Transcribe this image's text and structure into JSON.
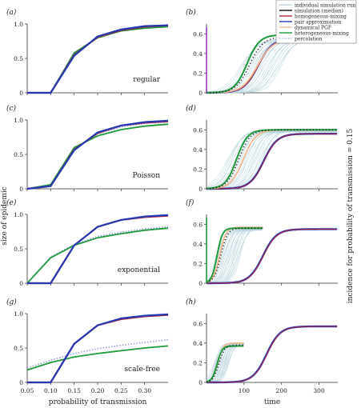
{
  "colors": {
    "individual": "#b9d4dc",
    "median": "#111111",
    "homogeneous": "#b0243a",
    "pair": "#2639b4",
    "dynamical": "#f1b890",
    "heterogeneous": "#1f9a3c",
    "percolation": "#9ea6df",
    "axis_tick": "#9a38c5"
  },
  "legend": {
    "placement": "top-right",
    "entries": [
      {
        "key": "individual",
        "label": "individual simulation run",
        "style": "line"
      },
      {
        "key": "median",
        "label": "simulation (median)",
        "style": "line"
      },
      {
        "key": "homogeneous",
        "label": "homogeneous-mixing",
        "style": "line"
      },
      {
        "key": "pair",
        "label": "pair approximation",
        "style": "line"
      },
      {
        "key": "dynamical",
        "label": "dynamical PGF",
        "style": "line"
      },
      {
        "key": "heterogeneous",
        "label": "heterogeneous-mixing",
        "style": "line"
      },
      {
        "key": "percolation",
        "label": "percolation",
        "style": "dotted"
      }
    ]
  },
  "labels": {
    "left_ylabel": "size of epidemic",
    "right_ylabel": "incidence for probability of transmission = 0.15",
    "left_xlabel": "probability of transmission",
    "right_xlabel": "time"
  },
  "chart_data": [
    {
      "panel": "(a)",
      "type": "line",
      "annotation": "regular",
      "x": [
        0.05,
        0.1,
        0.15,
        0.2,
        0.25,
        0.3,
        0.35
      ],
      "xticks": [
        "0.05",
        "0.10",
        "0.15",
        "0.20",
        "0.25",
        "0.30"
      ],
      "xlim": [
        0.05,
        0.35
      ],
      "ylim": [
        0,
        1
      ],
      "yticks": [
        "0",
        "0.5",
        "1.0"
      ],
      "show_xticklabels": false,
      "series": [
        {
          "key": "heterogeneous",
          "values": [
            0,
            0,
            0.58,
            0.8,
            0.9,
            0.94,
            0.96
          ]
        },
        {
          "key": "homogeneous",
          "values": [
            0,
            0,
            0.55,
            0.81,
            0.91,
            0.96,
            0.98
          ]
        },
        {
          "key": "pair",
          "values": [
            0,
            0,
            0.54,
            0.82,
            0.92,
            0.97,
            0.98
          ]
        },
        {
          "key": "percolation",
          "values": [
            0,
            0,
            0.55,
            0.82,
            0.93,
            0.97,
            0.99
          ]
        }
      ]
    },
    {
      "panel": "(c)",
      "type": "line",
      "annotation": "Poisson",
      "x": [
        0.05,
        0.1,
        0.15,
        0.2,
        0.25,
        0.3,
        0.35
      ],
      "xticks": [
        "0.05",
        "0.10",
        "0.15",
        "0.20",
        "0.25",
        "0.30"
      ],
      "xlim": [
        0.05,
        0.35
      ],
      "ylim": [
        0,
        1
      ],
      "yticks": [
        "0",
        "0.5",
        "1.0"
      ],
      "show_xticklabels": false,
      "series": [
        {
          "key": "heterogeneous",
          "values": [
            0,
            0.06,
            0.6,
            0.77,
            0.86,
            0.91,
            0.94
          ]
        },
        {
          "key": "homogeneous",
          "values": [
            0,
            0.04,
            0.57,
            0.81,
            0.92,
            0.96,
            0.98
          ]
        },
        {
          "key": "pair",
          "values": [
            0,
            0.04,
            0.56,
            0.82,
            0.92,
            0.97,
            0.99
          ]
        },
        {
          "key": "percolation",
          "values": [
            0,
            0.04,
            0.58,
            0.8,
            0.9,
            0.95,
            0.97
          ]
        }
      ]
    },
    {
      "panel": "(e)",
      "type": "line",
      "annotation": "exponential",
      "x": [
        0.05,
        0.1,
        0.15,
        0.2,
        0.25,
        0.3,
        0.35
      ],
      "xticks": [
        "0.05",
        "0.10",
        "0.15",
        "0.20",
        "0.25",
        "0.30"
      ],
      "xlim": [
        0.05,
        0.35
      ],
      "ylim": [
        0,
        1
      ],
      "yticks": [
        "0",
        "0.5",
        "1.0"
      ],
      "show_xticklabels": false,
      "series": [
        {
          "key": "homogeneous",
          "values": [
            0,
            0,
            0.55,
            0.82,
            0.92,
            0.96,
            0.98
          ]
        },
        {
          "key": "pair",
          "values": [
            0,
            0,
            0.55,
            0.82,
            0.92,
            0.97,
            0.99
          ]
        },
        {
          "key": "heterogeneous",
          "values": [
            0,
            0.37,
            0.55,
            0.66,
            0.72,
            0.77,
            0.8
          ]
        },
        {
          "key": "percolation",
          "values": [
            0,
            0.38,
            0.56,
            0.68,
            0.74,
            0.79,
            0.82
          ]
        }
      ]
    },
    {
      "panel": "(g)",
      "type": "line",
      "annotation": "scale-free",
      "x": [
        0.05,
        0.1,
        0.15,
        0.2,
        0.25,
        0.3,
        0.35
      ],
      "xticks": [
        "0.05",
        "0.10",
        "0.15",
        "0.20",
        "0.25",
        "0.30"
      ],
      "xlim": [
        0.05,
        0.35
      ],
      "ylim": [
        0,
        1
      ],
      "yticks": [
        "0",
        "0.5",
        "1.0"
      ],
      "show_xticklabels": true,
      "series": [
        {
          "key": "homogeneous",
          "values": [
            0,
            0,
            0.56,
            0.83,
            0.92,
            0.96,
            0.98
          ]
        },
        {
          "key": "pair",
          "values": [
            0,
            0,
            0.56,
            0.83,
            0.93,
            0.97,
            0.99
          ]
        },
        {
          "key": "heterogeneous",
          "values": [
            0.18,
            0.29,
            0.37,
            0.42,
            0.46,
            0.5,
            0.53
          ]
        },
        {
          "key": "percolation",
          "values": [
            0.21,
            0.32,
            0.42,
            0.49,
            0.54,
            0.58,
            0.62
          ]
        }
      ]
    },
    {
      "panel": "(b)",
      "type": "line",
      "xlim": [
        0,
        350
      ],
      "ylim": [
        0,
        0.7
      ],
      "xticks": [
        "100",
        "200",
        "300"
      ],
      "yticks": [
        "0",
        "0.2",
        "0.4",
        "0.6"
      ],
      "show_xticklabels": false,
      "individual_runs": {
        "count": 24,
        "peak": 0.55,
        "mid_range": [
          90,
          200
        ],
        "rate_range": [
          0.045,
          0.06
        ]
      },
      "series": [
        {
          "key": "heterogeneous",
          "peak": 0.59,
          "mid": 108,
          "rate": 0.06,
          "end": 350
        },
        {
          "key": "pair",
          "peak": 0.55,
          "mid": 137,
          "rate": 0.052,
          "end": 350
        },
        {
          "key": "homogeneous",
          "peak": 0.55,
          "mid": 138,
          "rate": 0.052,
          "end": 350
        },
        {
          "key": "dynamical",
          "peak": 0.54,
          "mid": 135,
          "rate": 0.05,
          "end": 350
        },
        {
          "key": "median",
          "peak": 0.57,
          "mid": 115,
          "rate": 0.055,
          "end": 350,
          "dotted": true
        }
      ]
    },
    {
      "panel": "(d)",
      "type": "line",
      "xlim": [
        0,
        350
      ],
      "ylim": [
        0,
        0.7
      ],
      "xticks": [
        "100",
        "200",
        "300"
      ],
      "yticks": [
        "0",
        "0.2",
        "0.4",
        "0.6"
      ],
      "show_xticklabels": false,
      "individual_runs": {
        "count": 24,
        "peak": 0.6,
        "mid_range": [
          55,
          150
        ],
        "rate_range": [
          0.05,
          0.07
        ]
      },
      "series": [
        {
          "key": "heterogeneous",
          "peak": 0.6,
          "mid": 80,
          "rate": 0.068,
          "end": 350
        },
        {
          "key": "dynamical",
          "peak": 0.6,
          "mid": 98,
          "rate": 0.06,
          "end": 350
        },
        {
          "key": "pair",
          "peak": 0.56,
          "mid": 152,
          "rate": 0.055,
          "end": 350
        },
        {
          "key": "homogeneous",
          "peak": 0.56,
          "mid": 153,
          "rate": 0.055,
          "end": 350
        },
        {
          "key": "median",
          "peak": 0.6,
          "mid": 86,
          "rate": 0.065,
          "end": 350,
          "dotted": true
        }
      ]
    },
    {
      "panel": "(f)",
      "type": "line",
      "xlim": [
        0,
        350
      ],
      "ylim": [
        0,
        0.7
      ],
      "xticks": [
        "100",
        "200",
        "300"
      ],
      "yticks": [
        "0",
        "0.2",
        "0.4",
        "0.6"
      ],
      "show_xticklabels": false,
      "individual_runs": {
        "count": 24,
        "peak": 0.56,
        "mid_range": [
          25,
          90
        ],
        "rate_range": [
          0.08,
          0.12
        ],
        "end": 150
      },
      "series": [
        {
          "key": "heterogeneous",
          "peak": 0.56,
          "mid": 28,
          "rate": 0.14,
          "end": 150
        },
        {
          "key": "dynamical",
          "peak": 0.57,
          "mid": 35,
          "rate": 0.12,
          "end": 150
        },
        {
          "key": "pair",
          "peak": 0.55,
          "mid": 150,
          "rate": 0.055,
          "end": 350
        },
        {
          "key": "homogeneous",
          "peak": 0.55,
          "mid": 151,
          "rate": 0.055,
          "end": 350
        },
        {
          "key": "median",
          "peak": 0.56,
          "mid": 38,
          "rate": 0.11,
          "end": 150,
          "dotted": true
        }
      ]
    },
    {
      "panel": "(h)",
      "type": "line",
      "xlim": [
        0,
        350
      ],
      "ylim": [
        0,
        0.7
      ],
      "xticks": [
        "100",
        "200",
        "300"
      ],
      "yticks": [
        "0",
        "0.2",
        "0.4",
        "0.6"
      ],
      "show_xticklabels": true,
      "individual_runs": {
        "count": 24,
        "peak": 0.4,
        "mid_range": [
          20,
          60
        ],
        "rate_range": [
          0.1,
          0.16
        ],
        "end": 100
      },
      "series": [
        {
          "key": "heterogeneous",
          "peak": 0.37,
          "mid": 28,
          "rate": 0.15,
          "end": 100
        },
        {
          "key": "dynamical",
          "peak": 0.4,
          "mid": 30,
          "rate": 0.14,
          "end": 100
        },
        {
          "key": "pair",
          "peak": 0.57,
          "mid": 160,
          "rate": 0.055,
          "end": 350
        },
        {
          "key": "homogeneous",
          "peak": 0.57,
          "mid": 161,
          "rate": 0.055,
          "end": 350
        },
        {
          "key": "median",
          "peak": 0.38,
          "mid": 33,
          "rate": 0.13,
          "end": 100,
          "dotted": true
        }
      ]
    }
  ]
}
